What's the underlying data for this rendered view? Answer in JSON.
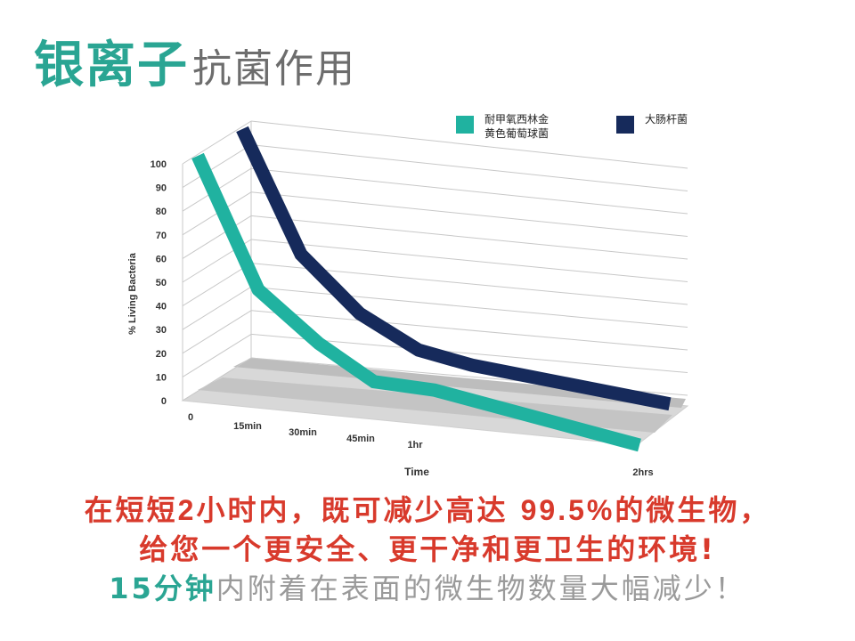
{
  "title": {
    "main": "银离子",
    "sub": "抗菌作用"
  },
  "chart_data": {
    "type": "line",
    "ylabel": "% Living Bacteria",
    "xlabel": "Time",
    "ylim": [
      0,
      100
    ],
    "yticks": [
      "100",
      "90",
      "80",
      "70",
      "60",
      "50",
      "40",
      "30",
      "20",
      "10",
      "0"
    ],
    "categories": [
      "0",
      "15min",
      "30min",
      "45min",
      "1hr",
      "2hrs"
    ],
    "legend_position": "top-right",
    "series": [
      {
        "name": "耐甲氧西林金黄色葡萄球菌",
        "legend_lines": [
          "耐甲氧西林金",
          "黄色葡萄球菌"
        ],
        "color": "#20b2a0",
        "values": [
          100,
          46,
          27,
          15,
          5,
          0
        ]
      },
      {
        "name": "大肠杆菌",
        "legend_lines": [
          "大肠杆菌"
        ],
        "color": "#162a5b",
        "values": [
          100,
          51,
          29,
          17,
          9,
          3
        ]
      }
    ]
  },
  "captions": {
    "line1_a": "在短短",
    "line1_b": "2",
    "line1_c": "小时内，既可减少高达 ",
    "line1_d": "99.5%",
    "line1_e": "的微生物，",
    "line2": "给您一个更安全、更干净和更卫生的环境!",
    "line3_hl": "15分钟",
    "line3_rest": "内附着在表面的微生物数量大幅减少！"
  }
}
